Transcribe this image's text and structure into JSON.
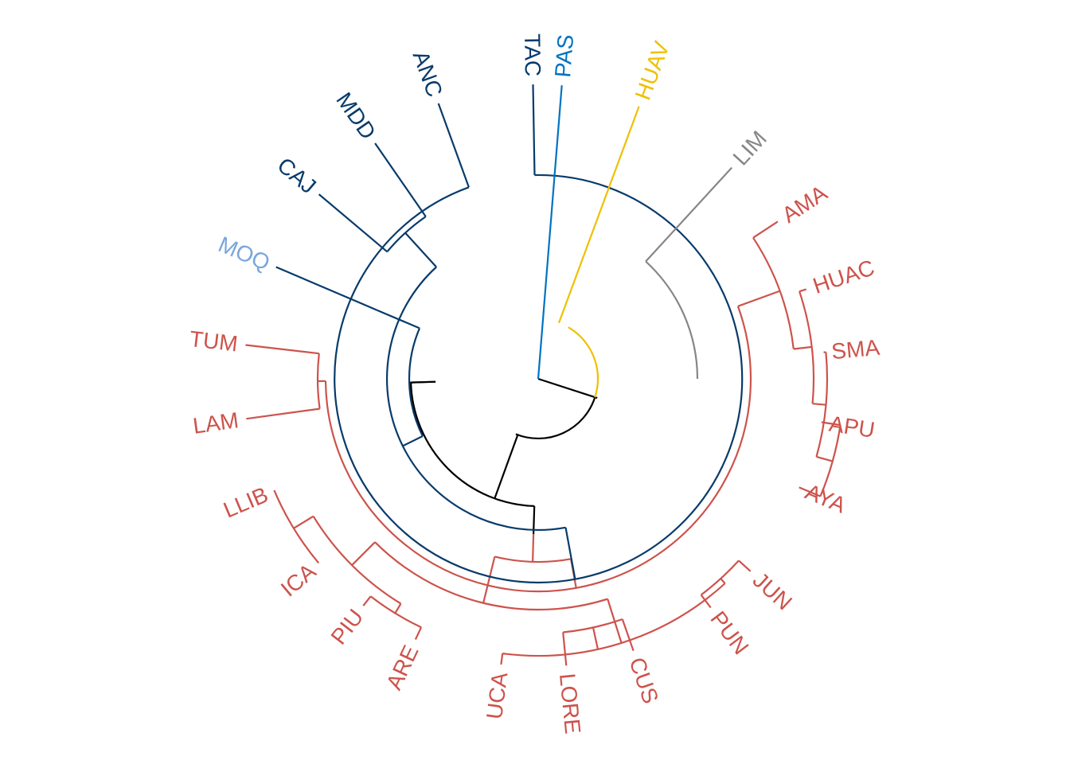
{
  "diagram": {
    "type": "circular-dendrogram",
    "colors": {
      "root": "#000000",
      "red": "#cd534c",
      "dark_blue": "#073b6b",
      "light_blue": "#7aa6dc",
      "blue": "#0073c2",
      "yellow": "#efc000",
      "gray": "#868686"
    },
    "leaves": [
      {
        "label": "TAC",
        "group": "dark_blue"
      },
      {
        "label": "PAS",
        "group": "blue"
      },
      {
        "label": "HUAV",
        "group": "yellow"
      },
      {
        "label": "LIM",
        "group": "gray"
      },
      {
        "label": "AMA",
        "group": "red"
      },
      {
        "label": "HUAC",
        "group": "red"
      },
      {
        "label": "SMA",
        "group": "red"
      },
      {
        "label": "APU",
        "group": "red"
      },
      {
        "label": "AYA",
        "group": "red"
      },
      {
        "label": "JUN",
        "group": "red"
      },
      {
        "label": "PUN",
        "group": "red"
      },
      {
        "label": "CUS",
        "group": "red"
      },
      {
        "label": "LORE",
        "group": "red"
      },
      {
        "label": "UCA",
        "group": "red"
      },
      {
        "label": "ARE",
        "group": "red"
      },
      {
        "label": "PIU",
        "group": "red"
      },
      {
        "label": "ICA",
        "group": "red"
      },
      {
        "label": "LLIB",
        "group": "red"
      },
      {
        "label": "LAM",
        "group": "red"
      },
      {
        "label": "TUM",
        "group": "red"
      },
      {
        "label": "MOQ",
        "group": "light_blue"
      },
      {
        "label": "CAJ",
        "group": "dark_blue"
      },
      {
        "label": "MDD",
        "group": "dark_blue"
      },
      {
        "label": "ANC",
        "group": "dark_blue"
      }
    ]
  }
}
